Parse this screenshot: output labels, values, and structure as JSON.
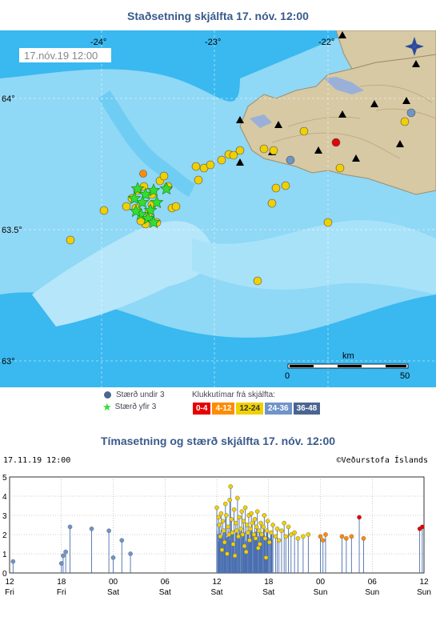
{
  "map": {
    "title": "Staðsetning skjálfta   17. nóv. 12:00",
    "timestamp_label": "17.nóv.19  12:00",
    "lon_labels": [
      "-24°",
      "-23°",
      "-22°"
    ],
    "lat_labels": [
      "64°",
      "63.5°",
      "63°"
    ],
    "scale": {
      "unit": "km",
      "min_label": "0",
      "max_label": "50"
    },
    "icons": [
      "compass-icon",
      "seismic-station-icon"
    ]
  },
  "legend": {
    "small_label": "Stærð undir 3",
    "large_label": "Stærð yfir 3",
    "hours_title": "Klukkutímar frá skjálfta:",
    "hour_bins": [
      {
        "label": "0-4",
        "color": "#e60000"
      },
      {
        "label": "4-12",
        "color": "#ff8c00"
      },
      {
        "label": "12-24",
        "color": "#f0d000"
      },
      {
        "label": "24-36",
        "color": "#6f94c8"
      },
      {
        "label": "36-48",
        "color": "#4a6590"
      }
    ]
  },
  "timeline": {
    "title": "Tímasetning og stærð skjálfta   17. nóv. 12:00",
    "date_label": "17.11.19 12:00",
    "credit": "©Veðurstofa Íslands"
  },
  "chart_data": {
    "type": "scatter",
    "title": "Tímasetning og stærð skjálfta   17. nóv. 12:00",
    "xlabel": "",
    "ylabel": "",
    "ylim": [
      0,
      5
    ],
    "y_ticks": [
      "0",
      "1",
      "2",
      "3",
      "4",
      "5"
    ],
    "x_ticks": [
      {
        "hour": "12",
        "day": "Fri"
      },
      {
        "hour": "18",
        "day": "Fri"
      },
      {
        "hour": "00",
        "day": "Sat"
      },
      {
        "hour": "06",
        "day": "Sat"
      },
      {
        "hour": "12",
        "day": "Sat"
      },
      {
        "hour": "18",
        "day": "Sat"
      },
      {
        "hour": "00",
        "day": "Sun"
      },
      {
        "hour": "06",
        "day": "Sun"
      },
      {
        "hour": "12",
        "day": "Sun"
      }
    ],
    "xlim_hours": [
      0,
      48
    ],
    "grid": true,
    "series": [
      {
        "color": "#e60000",
        "points": [
          [
            40.5,
            2.9
          ],
          [
            47.5,
            2.3
          ],
          [
            47.8,
            2.4
          ]
        ]
      },
      {
        "color": "#ff8c00",
        "points": [
          [
            36.0,
            1.9
          ],
          [
            36.3,
            1.7
          ],
          [
            36.6,
            2.0
          ],
          [
            38.5,
            1.9
          ],
          [
            39.0,
            1.8
          ],
          [
            39.6,
            1.9
          ],
          [
            41.0,
            1.8
          ]
        ]
      },
      {
        "color": "#f0d000",
        "points": [
          [
            24.0,
            3.4
          ],
          [
            24.2,
            2.9
          ],
          [
            24.3,
            2.5
          ],
          [
            24.4,
            1.9
          ],
          [
            24.5,
            3.1
          ],
          [
            24.7,
            2.7
          ],
          [
            24.8,
            2.2
          ],
          [
            24.9,
            1.6
          ],
          [
            25.0,
            3.6
          ],
          [
            25.1,
            3.0
          ],
          [
            25.3,
            2.4
          ],
          [
            25.4,
            2.0
          ],
          [
            25.5,
            3.8
          ],
          [
            25.6,
            4.5
          ],
          [
            25.7,
            2.8
          ],
          [
            25.8,
            2.1
          ],
          [
            25.9,
            1.5
          ],
          [
            26.0,
            3.3
          ],
          [
            26.2,
            2.6
          ],
          [
            26.3,
            2.2
          ],
          [
            26.4,
            3.9
          ],
          [
            26.5,
            1.9
          ],
          [
            26.6,
            2.9
          ],
          [
            26.8,
            2.3
          ],
          [
            26.9,
            3.2
          ],
          [
            27.0,
            2.0
          ],
          [
            27.1,
            2.7
          ],
          [
            27.2,
            1.4
          ],
          [
            27.3,
            3.4
          ],
          [
            27.5,
            2.5
          ],
          [
            27.6,
            2.1
          ],
          [
            27.7,
            3.0
          ],
          [
            27.8,
            1.7
          ],
          [
            27.9,
            2.3
          ],
          [
            28.0,
            3.1
          ],
          [
            28.1,
            2.6
          ],
          [
            28.3,
            2.0
          ],
          [
            28.4,
            2.8
          ],
          [
            28.5,
            1.8
          ],
          [
            28.6,
            2.4
          ],
          [
            28.7,
            3.2
          ],
          [
            28.9,
            2.2
          ],
          [
            29.0,
            1.5
          ],
          [
            29.1,
            2.6
          ],
          [
            29.2,
            2.0
          ],
          [
            29.4,
            2.4
          ],
          [
            29.5,
            3.0
          ],
          [
            29.6,
            1.8
          ],
          [
            29.8,
            2.2
          ],
          [
            29.9,
            2.7
          ],
          [
            30.1,
            1.6
          ],
          [
            30.3,
            2.1
          ],
          [
            30.5,
            2.5
          ],
          [
            30.8,
            1.9
          ],
          [
            31.0,
            2.3
          ],
          [
            31.2,
            1.7
          ],
          [
            31.5,
            2.2
          ],
          [
            31.8,
            2.6
          ],
          [
            32.0,
            1.9
          ],
          [
            32.3,
            2.4
          ],
          [
            32.6,
            2.0
          ],
          [
            33.0,
            2.1
          ],
          [
            33.4,
            1.8
          ],
          [
            34.0,
            1.9
          ],
          [
            34.6,
            2.0
          ],
          [
            25.2,
            1.0
          ],
          [
            26.1,
            0.9
          ],
          [
            27.4,
            1.1
          ],
          [
            28.8,
            1.3
          ],
          [
            29.7,
            0.8
          ],
          [
            24.6,
            1.2
          ]
        ]
      },
      {
        "color": "#6f94c8",
        "points": [
          [
            0.4,
            0.6
          ],
          [
            6.0,
            0.5
          ],
          [
            6.2,
            0.9
          ],
          [
            6.5,
            1.1
          ],
          [
            7.0,
            2.4
          ],
          [
            9.5,
            2.3
          ],
          [
            11.5,
            2.2
          ],
          [
            12.0,
            0.8
          ],
          [
            13.0,
            1.7
          ],
          [
            14.0,
            1.0
          ]
        ]
      }
    ]
  }
}
